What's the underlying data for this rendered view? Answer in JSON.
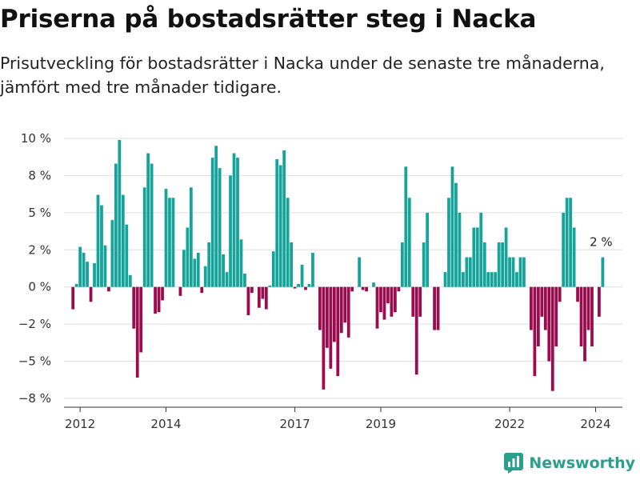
{
  "title": "Priserna på bostadsrätter steg i Nacka",
  "subtitle": "Prisutveckling för bostadsrätter i Nacka under de senaste tre månaderna, jämfört med tre månader tidigare.",
  "brand": "Newsworthy",
  "colors": {
    "positive": "#16a39a",
    "negative": "#9b0c4f",
    "grid": "#dddddd",
    "axis": "#333333",
    "brand": "#2b9f8e"
  },
  "chart_data": {
    "type": "bar",
    "title": "Priserna på bostadsrätter steg i Nacka",
    "xlabel": "",
    "ylabel": "",
    "grid": true,
    "legend": "none",
    "ylim": [
      -9,
      10
    ],
    "yticks": [
      {
        "value": 10,
        "label": "10 %"
      },
      {
        "value": 7.5,
        "label": "8 %"
      },
      {
        "value": 5,
        "label": "5 %"
      },
      {
        "value": 2.5,
        "label": "2 %"
      },
      {
        "value": 0,
        "label": "0 %"
      },
      {
        "value": -2.5,
        "label": "−2 %"
      },
      {
        "value": -5,
        "label": "−5 %"
      },
      {
        "value": -7.5,
        "label": "−8 %"
      }
    ],
    "xticks": [
      {
        "index": 2,
        "label": "2012"
      },
      {
        "index": 26,
        "label": "2014"
      },
      {
        "index": 62,
        "label": "2017"
      },
      {
        "index": 86,
        "label": "2019"
      },
      {
        "index": 122,
        "label": "2022"
      },
      {
        "index": 146,
        "label": "2024"
      }
    ],
    "annotation": {
      "text": "2 %",
      "index": 148
    },
    "values": [
      -1.5,
      0.2,
      2.7,
      2.3,
      1.7,
      -1.0,
      1.6,
      6.2,
      5.5,
      2.8,
      -0.3,
      4.5,
      8.3,
      9.9,
      6.2,
      4.2,
      0.8,
      -2.8,
      -6.1,
      -4.4,
      6.7,
      9.0,
      8.3,
      -1.8,
      -1.7,
      -0.9,
      6.6,
      6.0,
      6.0,
      0.0,
      -0.6,
      2.5,
      4.0,
      6.7,
      1.9,
      2.3,
      -0.4,
      1.4,
      3.0,
      8.7,
      9.5,
      8.0,
      2.2,
      1.0,
      7.5,
      9.0,
      8.7,
      3.2,
      0.9,
      -1.9,
      -0.4,
      0.0,
      -1.4,
      -0.8,
      -1.5,
      0.1,
      2.4,
      8.6,
      8.2,
      9.2,
      6.0,
      3.0,
      -0.1,
      0.2,
      1.5,
      -0.2,
      0.2,
      2.3,
      0.0,
      -2.9,
      -6.9,
      -4.1,
      -5.5,
      -3.7,
      -6.0,
      -3.1,
      -2.4,
      -3.4,
      -0.3,
      0.0,
      2.0,
      -0.2,
      -0.3,
      0.0,
      0.3,
      -2.8,
      -1.7,
      -2.2,
      -1.1,
      -2.0,
      -1.7,
      -0.3,
      3.0,
      8.1,
      6.0,
      -2.0,
      -5.9,
      -2.0,
      3.0,
      5.0,
      0.0,
      -2.9,
      -2.9,
      0.0,
      1.0,
      6.0,
      8.1,
      7.0,
      5.0,
      1.0,
      2.0,
      2.0,
      4.0,
      4.0,
      5.0,
      3.0,
      1.0,
      1.0,
      1.0,
      3.0,
      3.0,
      4.0,
      2.0,
      2.0,
      1.0,
      2.0,
      2.0,
      0.0,
      -2.9,
      -6.0,
      -4.0,
      -2.0,
      -2.9,
      -5.0,
      -7.0,
      -4.0,
      -1.0,
      5.0,
      6.0,
      6.0,
      4.0,
      -1.0,
      -4.0,
      -5.0,
      -2.9,
      -4.0,
      0.0,
      -2.0,
      2.0
    ]
  }
}
